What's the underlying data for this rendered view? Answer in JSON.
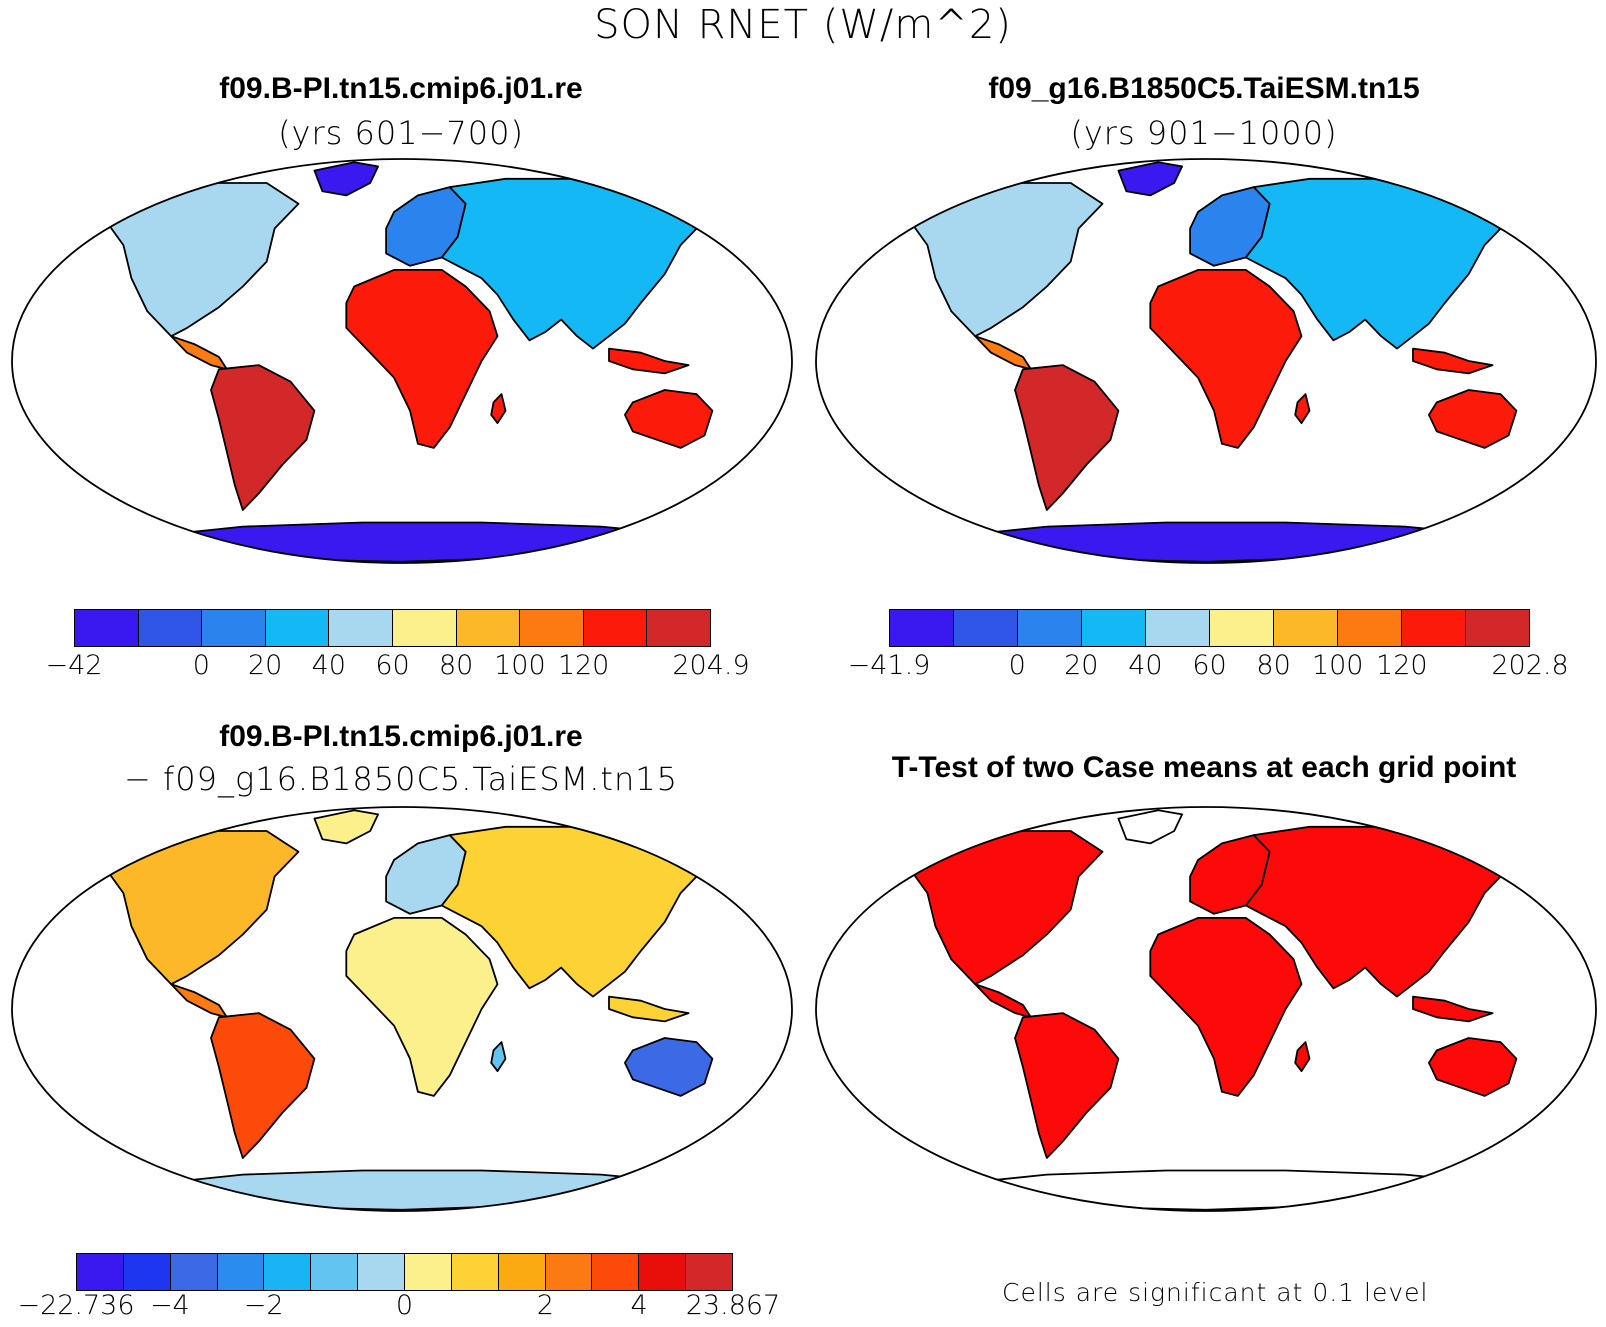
{
  "figure": {
    "title": "SON RNET (W/m^2)"
  },
  "panels": {
    "top_left": {
      "case": "f09.B-PI.tn15.cmip6.j01.re",
      "years": "(yrs 601−700)",
      "colorbar": {
        "colors": [
          "#3a18f0",
          "#2f56e6",
          "#2b84ee",
          "#14b8f4",
          "#a8d8f0",
          "#fcf08c",
          "#fcb828",
          "#fc7a12",
          "#fc1a0a",
          "#d2282a"
        ],
        "ticks": [
          "−42",
          "0",
          "20",
          "40",
          "60",
          "80",
          "100",
          "120",
          "204.9"
        ]
      }
    },
    "top_right": {
      "case": "f09_g16.B1850C5.TaiESM.tn15",
      "years": "(yrs 901−1000)",
      "colorbar": {
        "colors": [
          "#3a18f0",
          "#2f56e6",
          "#2b84ee",
          "#14b8f4",
          "#a8d8f0",
          "#fcf08c",
          "#fcb828",
          "#fc7a12",
          "#fc1a0a",
          "#d2282a"
        ],
        "ticks": [
          "−41.9",
          "0",
          "20",
          "40",
          "60",
          "80",
          "100",
          "120",
          "202.8"
        ]
      }
    },
    "bottom_left": {
      "case": "f09.B-PI.tn15.cmip6.j01.re",
      "minus_case": "− f09_g16.B1850C5.TaiESM.tn15",
      "colorbar": {
        "colors": [
          "#3a18f0",
          "#1f36f0",
          "#3c6ae6",
          "#2b8cf0",
          "#1ab4f4",
          "#62c4f0",
          "#a8d8f0",
          "#fcf08c",
          "#fcd234",
          "#fcaa12",
          "#fc7a12",
          "#fc4a0a",
          "#e80e0a",
          "#d2282a"
        ],
        "ticks": [
          "−22.736",
          "−4",
          "−2",
          "0",
          "2",
          "4",
          "23.867"
        ]
      }
    },
    "bottom_right": {
      "title": "T-Test of two Case means at each grid point",
      "note": "Cells are significant at 0.1 level",
      "significant_color": "#fc0a0a"
    }
  }
}
